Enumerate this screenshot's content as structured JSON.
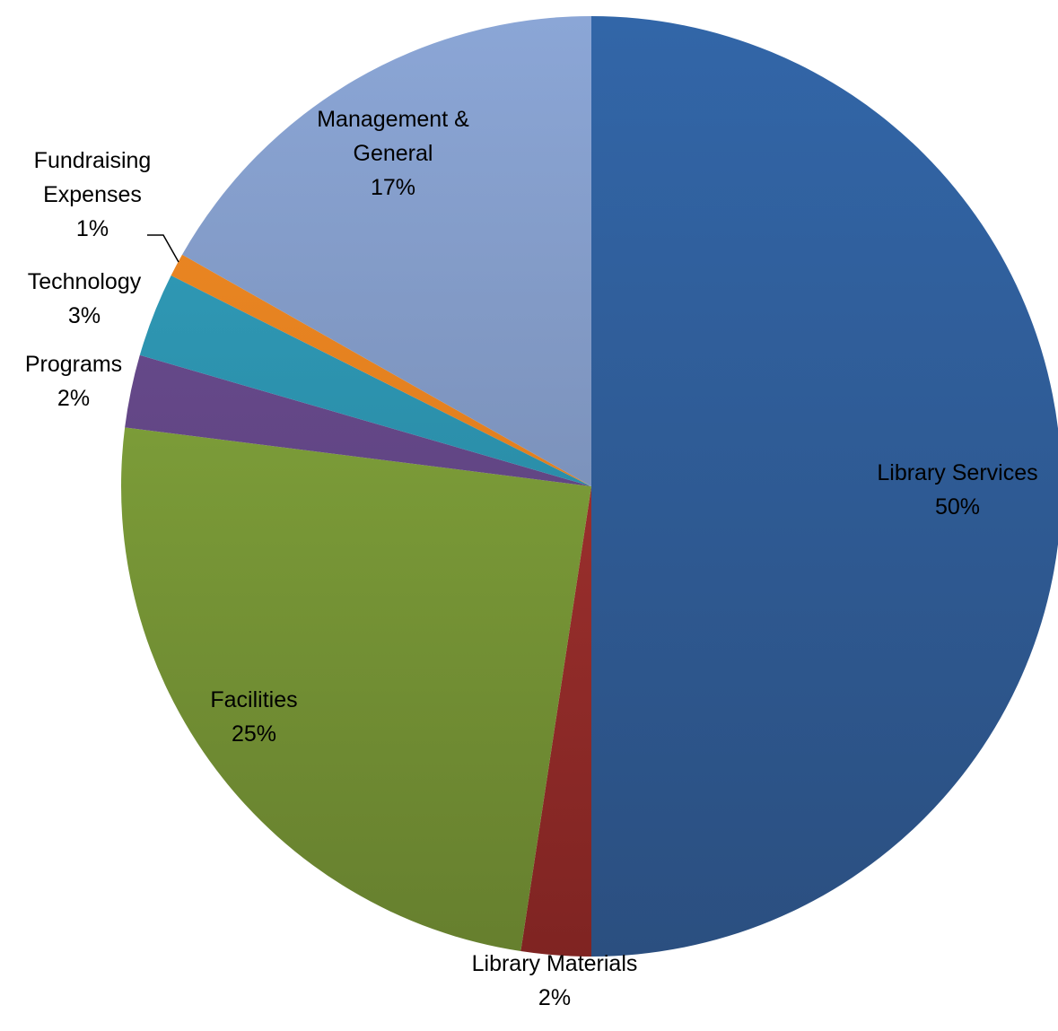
{
  "chart_data": {
    "type": "pie",
    "start_angle_deg": 0,
    "direction": "clockwise",
    "slices": [
      {
        "name": "Library Services",
        "label_lines": [
          "Library Services"
        ],
        "percent_label": "50%",
        "value": 50.0,
        "color": "#3266A8",
        "color_dark": "#2B4F80"
      },
      {
        "name": "Library Materials",
        "label_lines": [
          "Library Materials"
        ],
        "percent_label": "2%",
        "value": 2.4,
        "color": "#B43A37",
        "color_dark": "#7F2422"
      },
      {
        "name": "Facilities",
        "label_lines": [
          "Facilities"
        ],
        "percent_label": "25%",
        "value": 24.6,
        "color": "#8CB240",
        "color_dark": "#667F2E"
      },
      {
        "name": "Programs",
        "label_lines": [
          "Programs"
        ],
        "percent_label": "2%",
        "value": 2.5,
        "color": "#6E4F96",
        "color_dark": "#553C72"
      },
      {
        "name": "Technology",
        "label_lines": [
          "Technology"
        ],
        "percent_label": "3%",
        "value": 2.9,
        "color": "#33A2C0",
        "color_dark": "#227A92"
      },
      {
        "name": "Fundraising Expenses",
        "label_lines": [
          "Fundraising",
          "Expenses"
        ],
        "percent_label": "1%",
        "value": 0.8,
        "color": "#EF8A24",
        "color_dark": "#D4741A"
      },
      {
        "name": "Management & General",
        "label_lines": [
          "Management &",
          "General"
        ],
        "percent_label": "17%",
        "value": 16.8,
        "color": "#8BA6D6",
        "color_dark": "#6D7FA2"
      }
    ]
  }
}
